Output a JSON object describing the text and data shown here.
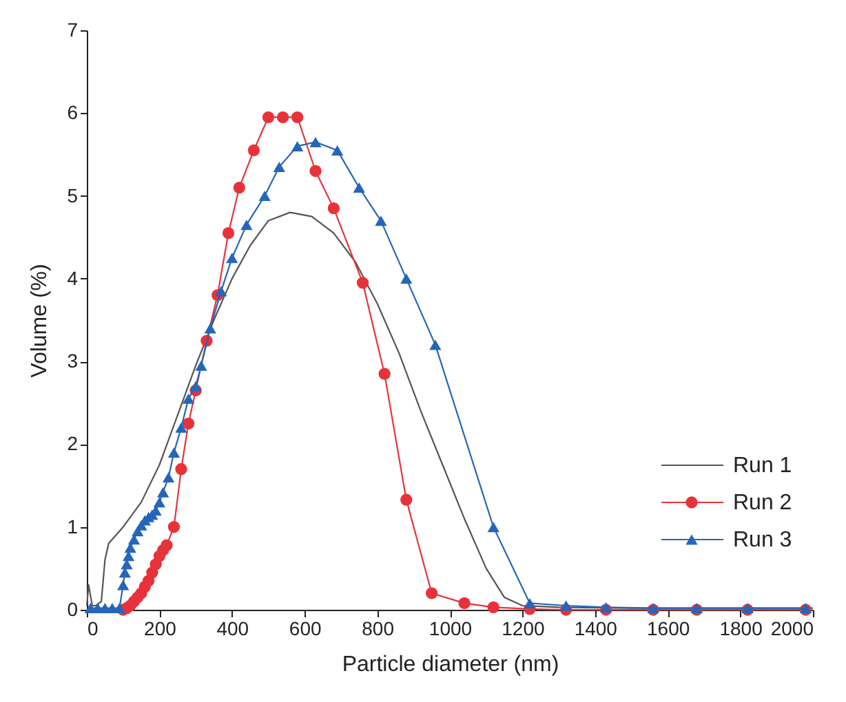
{
  "chart_data": {
    "type": "line",
    "xlabel": "Particle diameter (nm)",
    "ylabel": "Volume (%)",
    "xlim": [
      0,
      2000
    ],
    "ylim": [
      0,
      7
    ],
    "xticks": [
      0,
      200,
      400,
      600,
      800,
      1000,
      1200,
      1400,
      1600,
      1800,
      2000
    ],
    "yticks": [
      0,
      1,
      2,
      3,
      4,
      5,
      6,
      7
    ],
    "grid": false,
    "legend": "bottom right",
    "line_style": "solid",
    "series": [
      {
        "name": "Run 1",
        "color": "#555555",
        "marker": "none",
        "x": [
          0,
          5,
          15,
          25,
          40,
          50,
          60,
          80,
          100,
          150,
          200,
          250,
          300,
          350,
          400,
          450,
          500,
          560,
          620,
          680,
          740,
          800,
          860,
          920,
          980,
          1040,
          1100,
          1150,
          1200,
          1300,
          1500,
          1700,
          2000
        ],
        "values": [
          0.05,
          0.3,
          0.05,
          0.05,
          0.1,
          0.6,
          0.8,
          0.9,
          1.0,
          1.3,
          1.75,
          2.35,
          2.95,
          3.5,
          4.0,
          4.4,
          4.7,
          4.8,
          4.75,
          4.55,
          4.2,
          3.7,
          3.1,
          2.4,
          1.75,
          1.1,
          0.5,
          0.15,
          0.05,
          0.03,
          0.02,
          0.02,
          0.02
        ]
      },
      {
        "name": "Run 2",
        "color": "#e8323a",
        "marker": "circle",
        "x": [
          100,
          110,
          120,
          130,
          140,
          150,
          160,
          170,
          180,
          190,
          200,
          210,
          220,
          240,
          260,
          280,
          300,
          330,
          360,
          390,
          420,
          460,
          500,
          540,
          580,
          630,
          680,
          760,
          820,
          880,
          950,
          1040,
          1120,
          1220,
          1320,
          1430,
          1560,
          1680,
          1820,
          1980
        ],
        "values": [
          0,
          0.02,
          0.05,
          0.1,
          0.15,
          0.2,
          0.28,
          0.35,
          0.45,
          0.55,
          0.65,
          0.72,
          0.78,
          1.0,
          1.7,
          2.25,
          2.65,
          3.25,
          3.8,
          4.55,
          5.1,
          5.55,
          5.95,
          5.95,
          5.95,
          5.3,
          4.85,
          3.95,
          2.85,
          1.33,
          0.2,
          0.08,
          0.03,
          0.01,
          0,
          0,
          0,
          0,
          0,
          0
        ]
      },
      {
        "name": "Run 3",
        "color": "#2566b8",
        "marker": "triangle",
        "x": [
          10,
          30,
          50,
          70,
          90,
          100,
          105,
          110,
          115,
          120,
          130,
          140,
          150,
          160,
          170,
          180,
          190,
          200,
          210,
          225,
          240,
          260,
          280,
          300,
          315,
          340,
          370,
          400,
          440,
          490,
          530,
          580,
          630,
          690,
          750,
          810,
          880,
          960,
          1120,
          1220,
          1320,
          1430,
          1560,
          1680,
          1820,
          1980
        ],
        "values": [
          0.02,
          0.02,
          0.02,
          0.02,
          0.02,
          0.3,
          0.45,
          0.55,
          0.65,
          0.75,
          0.85,
          0.95,
          1.02,
          1.08,
          1.12,
          1.15,
          1.2,
          1.3,
          1.42,
          1.6,
          1.9,
          2.2,
          2.55,
          2.7,
          2.95,
          3.4,
          3.85,
          4.25,
          4.65,
          5.0,
          5.35,
          5.6,
          5.65,
          5.55,
          5.1,
          4.7,
          4.0,
          3.2,
          1.0,
          0.08,
          0.05,
          0.03,
          0.02,
          0.02,
          0.02,
          0.02
        ]
      }
    ]
  }
}
